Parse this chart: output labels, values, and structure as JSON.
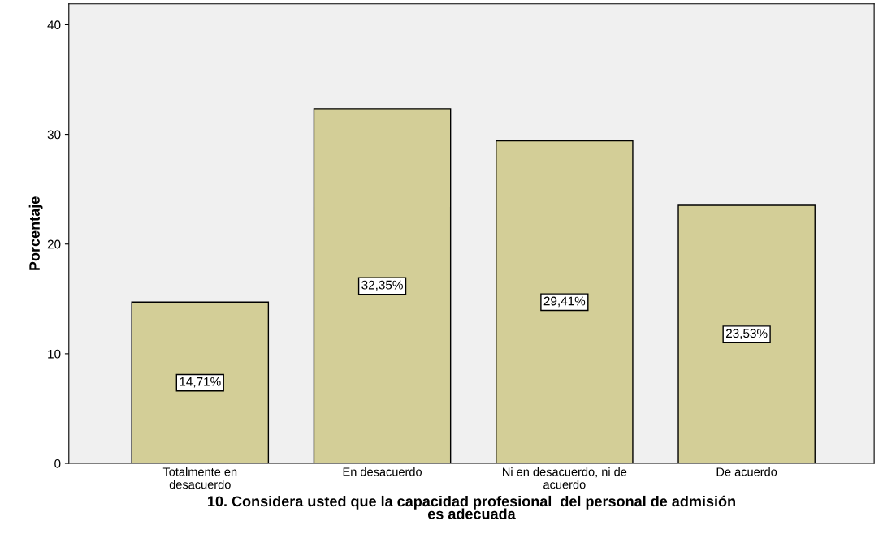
{
  "chart_data": {
    "type": "bar",
    "xlabel": "10. Considera usted que la capacidad profesional  del personal de admisión\nes adecuada",
    "ylabel": "Porcentaje",
    "categories": [
      "Totalmente en\ndesacuerdo",
      "En desacuerdo",
      "Ni en desacuerdo, ni de\nacuerdo",
      "De acuerdo"
    ],
    "values": [
      14.71,
      32.35,
      29.41,
      23.53
    ],
    "value_labels": [
      "14,71%",
      "32,35%",
      "29,41%",
      "23,53%"
    ],
    "color": "#d3ce97",
    "ylim": [
      0,
      41.9
    ],
    "yticks": [
      0,
      10,
      20,
      30,
      40
    ],
    "grid": false
  }
}
